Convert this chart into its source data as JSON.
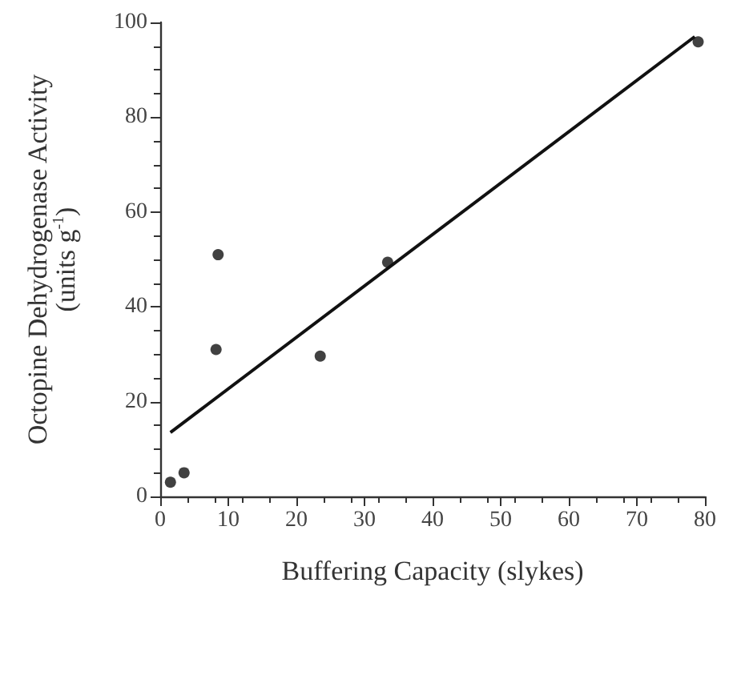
{
  "chart_data": {
    "type": "scatter",
    "xlabel": "Buffering Capacity (slykes)",
    "ylabel": "Octopine Dehydrogenase Activity\n(units g$^{-1}$)",
    "xlim": [
      0,
      80
    ],
    "xticks": [
      0,
      10,
      20,
      30,
      40,
      50,
      60,
      70,
      80
    ],
    "ylim": [
      0,
      100
    ],
    "yticks": [
      0,
      20,
      40,
      60,
      80,
      100
    ],
    "grid": false,
    "marker": "circle",
    "series": [
      {
        "color": "#111111",
        "x": [
          1.5,
          3.5,
          8.2,
          8.5,
          23.5,
          33.4,
          79
        ],
        "values": [
          3,
          5,
          31,
          51,
          29.6,
          49.4,
          95.9
        ]
      },
      {
        "type": "line",
        "color": "#111111",
        "marker": "none",
        "x": [
          1.5,
          78.5
        ],
        "values": [
          13.5,
          97
        ]
      }
    ]
  }
}
